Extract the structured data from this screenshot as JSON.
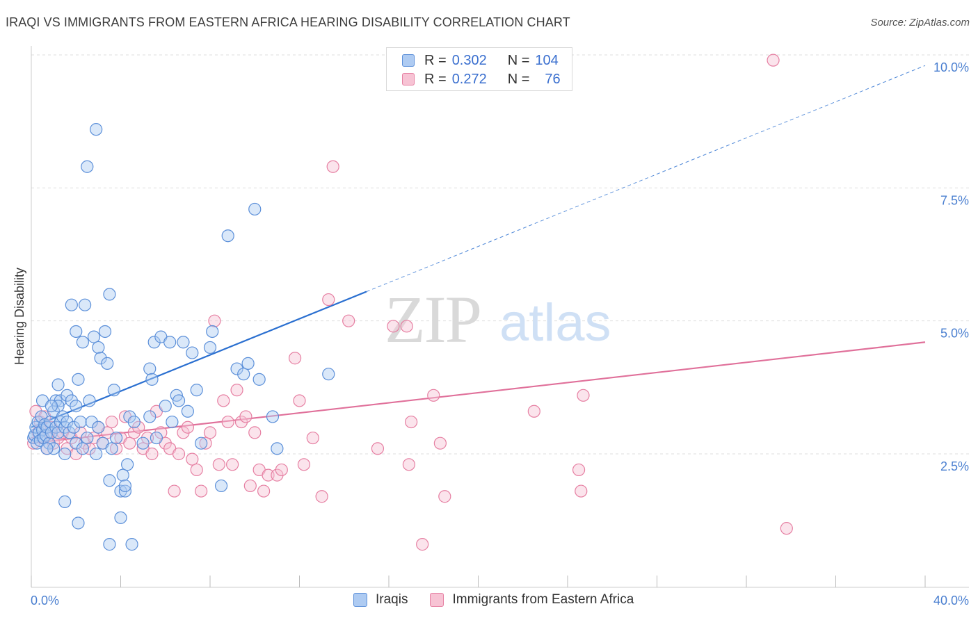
{
  "title": "IRAQI VS IMMIGRANTS FROM EASTERN AFRICA HEARING DISABILITY CORRELATION CHART",
  "source": "Source: ZipAtlas.com",
  "watermark": {
    "zip": "ZIP",
    "atlas": "atlas"
  },
  "legend": {
    "r_label": "R =",
    "n_label": "N =",
    "series": [
      {
        "name": "Iraqis",
        "r": "0.302",
        "n": "104"
      },
      {
        "name": "Immigrants from Eastern Africa",
        "r": "0.272",
        "n": "76"
      }
    ]
  },
  "colors": {
    "iraqis_fill": "#aecbf2",
    "iraqis_stroke": "#5b8fd9",
    "iraqis_line": "#2a6fd0",
    "eafrica_fill": "#f7c3d4",
    "eafrica_stroke": "#e67fa2",
    "eafrica_line": "#e0709a",
    "axis_label": "#4a7fd0",
    "grid": "#dddddd"
  },
  "chart_data": {
    "type": "scatter",
    "xlabel": "",
    "ylabel": "Hearing Disability",
    "xlim": [
      0,
      40
    ],
    "ylim": [
      0,
      10.5
    ],
    "x_tick_labels": [
      "0.0%",
      "40.0%"
    ],
    "y_ticks": [
      2.5,
      5.0,
      7.5,
      10.0
    ],
    "y_tick_labels": [
      "2.5%",
      "5.0%",
      "7.5%",
      "10.0%"
    ],
    "series": [
      {
        "name": "Iraqis",
        "trend": {
          "x0": 0,
          "y0": 3.0,
          "x1": 15,
          "y1": 5.55,
          "extend_to_x": 40,
          "extend_to_y": 9.8
        },
        "points": [
          [
            0.1,
            2.8
          ],
          [
            0.15,
            2.85
          ],
          [
            0.2,
            3.0
          ],
          [
            0.25,
            2.7
          ],
          [
            0.3,
            3.1
          ],
          [
            0.35,
            2.9
          ],
          [
            0.4,
            2.75
          ],
          [
            0.45,
            3.2
          ],
          [
            0.5,
            2.95
          ],
          [
            0.55,
            2.8
          ],
          [
            0.6,
            3.05
          ],
          [
            0.65,
            2.85
          ],
          [
            0.7,
            3.0
          ],
          [
            0.8,
            2.7
          ],
          [
            0.85,
            3.1
          ],
          [
            0.9,
            2.9
          ],
          [
            1.0,
            3.3
          ],
          [
            1.0,
            2.6
          ],
          [
            1.1,
            3.5
          ],
          [
            1.1,
            3.0
          ],
          [
            1.2,
            3.8
          ],
          [
            1.2,
            2.9
          ],
          [
            1.3,
            3.5
          ],
          [
            1.3,
            3.1
          ],
          [
            1.4,
            3.2
          ],
          [
            1.5,
            3.0
          ],
          [
            1.5,
            2.5
          ],
          [
            1.6,
            3.6
          ],
          [
            1.6,
            3.1
          ],
          [
            1.7,
            2.9
          ],
          [
            1.8,
            3.5
          ],
          [
            1.9,
            3.0
          ],
          [
            2.0,
            3.4
          ],
          [
            2.0,
            2.7
          ],
          [
            2.1,
            3.9
          ],
          [
            2.2,
            3.1
          ],
          [
            2.3,
            2.6
          ],
          [
            2.4,
            5.3
          ],
          [
            2.5,
            2.8
          ],
          [
            2.6,
            3.5
          ],
          [
            2.7,
            3.1
          ],
          [
            2.8,
            4.7
          ],
          [
            2.9,
            2.5
          ],
          [
            3.0,
            4.5
          ],
          [
            3.0,
            3.0
          ],
          [
            3.1,
            4.3
          ],
          [
            3.2,
            2.7
          ],
          [
            3.3,
            4.8
          ],
          [
            3.4,
            4.2
          ],
          [
            3.5,
            5.5
          ],
          [
            3.5,
            2.0
          ],
          [
            3.6,
            2.6
          ],
          [
            3.7,
            3.7
          ],
          [
            3.8,
            2.8
          ],
          [
            4.0,
            1.8
          ],
          [
            4.0,
            1.3
          ],
          [
            4.1,
            2.1
          ],
          [
            4.2,
            1.8
          ],
          [
            4.2,
            1.9
          ],
          [
            4.3,
            2.3
          ],
          [
            4.4,
            3.2
          ],
          [
            4.5,
            0.8
          ],
          [
            4.6,
            3.1
          ],
          [
            5.0,
            2.7
          ],
          [
            2.5,
            7.9
          ],
          [
            2.9,
            8.6
          ],
          [
            5.3,
            4.1
          ],
          [
            5.3,
            3.2
          ],
          [
            5.4,
            3.9
          ],
          [
            5.5,
            4.6
          ],
          [
            5.6,
            2.8
          ],
          [
            5.8,
            4.7
          ],
          [
            6.0,
            3.4
          ],
          [
            6.2,
            4.6
          ],
          [
            6.3,
            3.1
          ],
          [
            6.5,
            3.6
          ],
          [
            6.6,
            3.5
          ],
          [
            6.8,
            4.6
          ],
          [
            7.0,
            3.3
          ],
          [
            7.2,
            4.4
          ],
          [
            7.4,
            3.7
          ],
          [
            7.6,
            2.7
          ],
          [
            8.0,
            4.5
          ],
          [
            8.1,
            4.8
          ],
          [
            8.5,
            1.9
          ],
          [
            8.8,
            6.6
          ],
          [
            9.2,
            4.1
          ],
          [
            9.5,
            4.0
          ],
          [
            9.7,
            4.2
          ],
          [
            10.0,
            7.1
          ],
          [
            10.2,
            3.9
          ],
          [
            10.8,
            3.2
          ],
          [
            11.0,
            2.6
          ],
          [
            13.3,
            4.0
          ],
          [
            3.5,
            0.8
          ],
          [
            2.1,
            1.2
          ],
          [
            1.5,
            1.6
          ],
          [
            2.0,
            4.8
          ],
          [
            1.8,
            5.3
          ],
          [
            2.3,
            4.6
          ],
          [
            1.2,
            3.4
          ],
          [
            0.7,
            2.6
          ],
          [
            0.5,
            3.5
          ],
          [
            0.9,
            3.4
          ]
        ]
      },
      {
        "name": "Immigrants from Eastern Africa",
        "trend": {
          "x0": 0,
          "y0": 2.7,
          "x1": 40,
          "y1": 4.6
        },
        "points": [
          [
            0.1,
            2.7
          ],
          [
            0.2,
            3.3
          ],
          [
            0.3,
            2.9
          ],
          [
            0.4,
            3.1
          ],
          [
            0.5,
            2.8
          ],
          [
            0.6,
            3.2
          ],
          [
            0.7,
            2.6
          ],
          [
            0.8,
            2.9
          ],
          [
            0.9,
            3.0
          ],
          [
            1.0,
            2.7
          ],
          [
            1.2,
            2.8
          ],
          [
            1.4,
            2.9
          ],
          [
            1.6,
            2.6
          ],
          [
            1.8,
            2.8
          ],
          [
            2.0,
            2.5
          ],
          [
            2.2,
            2.9
          ],
          [
            2.4,
            2.7
          ],
          [
            2.6,
            2.6
          ],
          [
            2.8,
            2.8
          ],
          [
            3.0,
            3.0
          ],
          [
            3.2,
            2.7
          ],
          [
            3.4,
            2.9
          ],
          [
            3.6,
            3.1
          ],
          [
            3.8,
            2.6
          ],
          [
            4.0,
            2.8
          ],
          [
            4.2,
            3.2
          ],
          [
            4.4,
            2.7
          ],
          [
            4.6,
            2.9
          ],
          [
            4.8,
            3.0
          ],
          [
            5.0,
            2.6
          ],
          [
            5.2,
            2.8
          ],
          [
            5.4,
            2.5
          ],
          [
            5.6,
            3.3
          ],
          [
            5.8,
            2.9
          ],
          [
            6.0,
            2.7
          ],
          [
            6.2,
            2.6
          ],
          [
            6.4,
            1.8
          ],
          [
            6.6,
            2.5
          ],
          [
            6.8,
            2.9
          ],
          [
            7.0,
            3.0
          ],
          [
            7.2,
            2.4
          ],
          [
            7.4,
            2.2
          ],
          [
            7.6,
            1.8
          ],
          [
            7.8,
            2.7
          ],
          [
            8.0,
            2.9
          ],
          [
            8.2,
            5.0
          ],
          [
            8.4,
            2.3
          ],
          [
            8.6,
            3.5
          ],
          [
            8.8,
            3.1
          ],
          [
            9.0,
            2.3
          ],
          [
            9.2,
            3.7
          ],
          [
            9.4,
            3.1
          ],
          [
            9.6,
            3.2
          ],
          [
            9.8,
            1.9
          ],
          [
            10.0,
            2.9
          ],
          [
            10.2,
            2.2
          ],
          [
            10.4,
            1.8
          ],
          [
            10.6,
            2.1
          ],
          [
            11.0,
            2.1
          ],
          [
            11.2,
            2.2
          ],
          [
            11.8,
            4.3
          ],
          [
            12.0,
            3.5
          ],
          [
            12.2,
            2.3
          ],
          [
            12.6,
            2.8
          ],
          [
            13.0,
            1.7
          ],
          [
            13.3,
            5.4
          ],
          [
            13.5,
            7.9
          ],
          [
            14.2,
            5.0
          ],
          [
            15.5,
            2.6
          ],
          [
            16.2,
            4.9
          ],
          [
            17.0,
            3.1
          ],
          [
            17.5,
            0.8
          ],
          [
            18.0,
            3.6
          ],
          [
            18.5,
            1.7
          ],
          [
            22.5,
            3.3
          ],
          [
            24.5,
            2.2
          ]
        ]
      }
    ],
    "extra_points_eafrica": [
      [
        16.8,
        4.9
      ],
      [
        16.9,
        2.3
      ],
      [
        18.3,
        2.7
      ],
      [
        24.6,
        1.8
      ],
      [
        24.7,
        3.6
      ],
      [
        33.2,
        9.9
      ],
      [
        33.8,
        1.1
      ]
    ]
  }
}
